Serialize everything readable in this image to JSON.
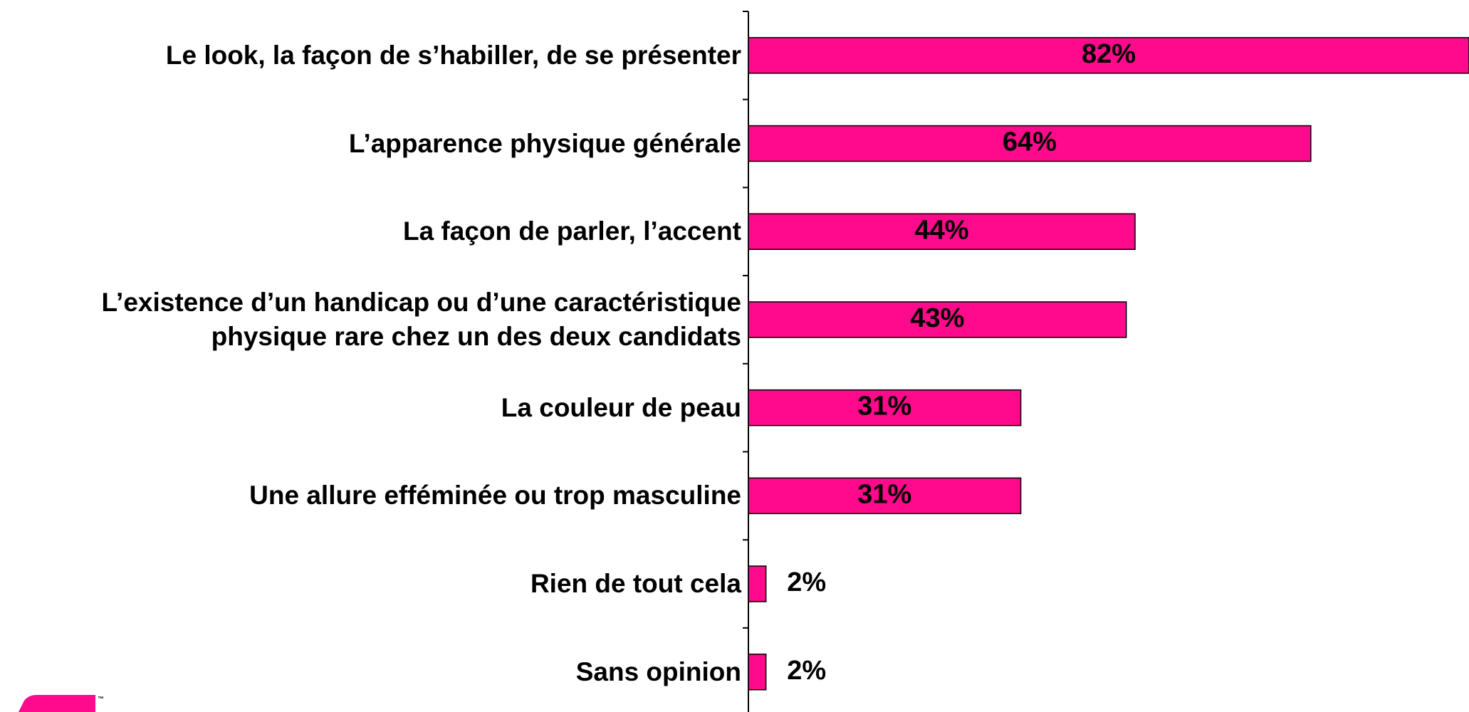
{
  "chart_data": {
    "type": "bar",
    "orientation": "horizontal",
    "categories": [
      "Le look, la façon de s’habiller, de se présenter",
      "L’apparence physique générale",
      "La façon de parler, l’accent",
      "L’existence d’un handicap ou d’une caractéristique\nphysique rare chez un des deux candidats",
      "La couleur de peau",
      "Une allure efféminée ou trop masculine",
      "Rien de tout cela",
      "Sans opinion"
    ],
    "values": [
      82,
      64,
      44,
      43,
      31,
      31,
      2,
      2
    ],
    "value_labels": [
      "82%",
      "64%",
      "44%",
      "43%",
      "31%",
      "31%",
      "2%",
      "2%"
    ],
    "color": "#ff0a8c",
    "xlim": [
      0,
      82
    ]
  },
  "logo_mark": "™"
}
